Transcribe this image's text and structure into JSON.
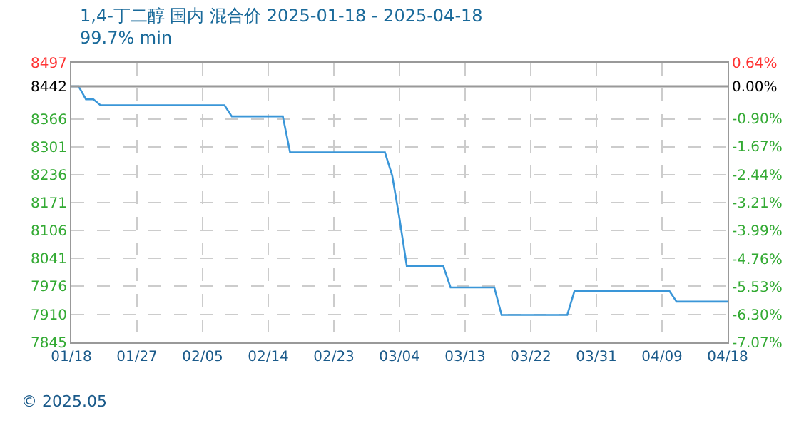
{
  "chart_data": {
    "type": "line",
    "title": "1,4-丁二醇 国内 混合价 2025-01-18 - 2025-04-18",
    "subtitle": "99.7% min",
    "x": [
      "2025-01-18",
      "2025-01-19",
      "2025-01-20",
      "2025-01-21",
      "2025-01-22",
      "2025-02-08",
      "2025-02-09",
      "2025-02-16",
      "2025-02-17",
      "2025-03-02",
      "2025-03-03",
      "2025-03-04",
      "2025-03-05",
      "2025-03-10",
      "2025-03-11",
      "2025-03-17",
      "2025-03-18",
      "2025-03-27",
      "2025-03-28",
      "2025-04-10",
      "2025-04-11",
      "2025-04-18"
    ],
    "series": [
      {
        "color": "#3a96d8",
        "values": [
          8442,
          8442,
          8412,
          8412,
          8398,
          8398,
          8372,
          8372,
          8288,
          8288,
          8234,
          8134,
          8023,
          8023,
          7973,
          7973,
          7909,
          7909,
          7965,
          7965,
          7940,
          7940
        ]
      }
    ],
    "xlim": [
      "2025-01-18",
      "2025-04-18"
    ],
    "xticks": [
      {
        "value": "2025-01-18",
        "label": "01/18"
      },
      {
        "value": "2025-01-27",
        "label": "01/27"
      },
      {
        "value": "2025-02-05",
        "label": "02/05"
      },
      {
        "value": "2025-02-14",
        "label": "02/14"
      },
      {
        "value": "2025-02-23",
        "label": "02/23"
      },
      {
        "value": "2025-03-04",
        "label": "03/04"
      },
      {
        "value": "2025-03-13",
        "label": "03/13"
      },
      {
        "value": "2025-03-22",
        "label": "03/22"
      },
      {
        "value": "2025-03-31",
        "label": "03/31"
      },
      {
        "value": "2025-04-09",
        "label": "04/09"
      },
      {
        "value": "2025-04-18",
        "label": "04/18"
      }
    ],
    "ylim": [
      7845,
      8497
    ],
    "yticks": [
      7845,
      7910,
      7976,
      8041,
      8106,
      8171,
      8236,
      8301,
      8366,
      8442,
      8497
    ],
    "y2lim": [
      -7.07,
      0.64
    ],
    "y2ticks": [
      {
        "value": -7.07,
        "label": "-7.07%"
      },
      {
        "value": -6.3,
        "label": "-6.30%"
      },
      {
        "value": -5.53,
        "label": "-5.53%"
      },
      {
        "value": -4.76,
        "label": "-4.76%"
      },
      {
        "value": -3.99,
        "label": "-3.99%"
      },
      {
        "value": -3.21,
        "label": "-3.21%"
      },
      {
        "value": -2.44,
        "label": "-2.44%"
      },
      {
        "value": -1.67,
        "label": "-1.67%"
      },
      {
        "value": -0.9,
        "label": "-0.90%"
      },
      {
        "value": 0,
        "label": "0.00%"
      },
      {
        "value": 0.64,
        "label": "0.64%"
      }
    ],
    "ref_lines": [
      {
        "axis": "y",
        "value": 8442,
        "color": "#999999"
      }
    ],
    "grid": true,
    "legend": false,
    "marker": "none",
    "line_style": "solid",
    "annotations": [
      "© 2025.05"
    ]
  }
}
